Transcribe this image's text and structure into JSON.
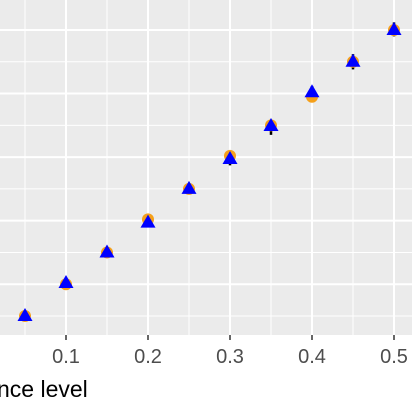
{
  "chart_data": {
    "type": "scatter",
    "xlabel": "nce level",
    "ylabel": "",
    "grid": true,
    "x_ticks": [
      0.1,
      0.2,
      0.3,
      0.4,
      0.5
    ],
    "x_tick_labels": [
      "0.1",
      "0.2",
      "0.3",
      "0.4",
      "0.5"
    ],
    "xlim": [
      0.0,
      0.5
    ],
    "ylim": [
      0.0,
      0.5
    ],
    "colors": {
      "panel": "#ebebeb",
      "grid": "#ffffff",
      "orange": "#f5a01a",
      "blue": "#0000ff",
      "errorbar": "#000000"
    },
    "series": [
      {
        "marker": "circle",
        "color": "orange",
        "x": [
          0.05,
          0.1,
          0.15,
          0.2,
          0.25,
          0.3,
          0.35,
          0.4,
          0.45,
          0.5
        ],
        "y": [
          0.05,
          0.1,
          0.15,
          0.202,
          0.25,
          0.302,
          0.35,
          0.395,
          0.45,
          0.5
        ]
      },
      {
        "marker": "triangle",
        "color": "blue",
        "x": [
          0.05,
          0.1,
          0.15,
          0.2,
          0.25,
          0.3,
          0.35,
          0.4,
          0.45,
          0.5
        ],
        "y": [
          0.05,
          0.102,
          0.15,
          0.197,
          0.25,
          0.297,
          0.349,
          0.402,
          0.45,
          0.5
        ],
        "error_low": [
          0.05,
          0.096,
          0.143,
          0.191,
          0.242,
          0.287,
          0.335,
          0.391,
          0.438,
          0.49
        ],
        "error_high": [
          0.05,
          0.108,
          0.157,
          0.207,
          0.259,
          0.31,
          0.358,
          0.412,
          0.462,
          0.512
        ]
      }
    ]
  }
}
